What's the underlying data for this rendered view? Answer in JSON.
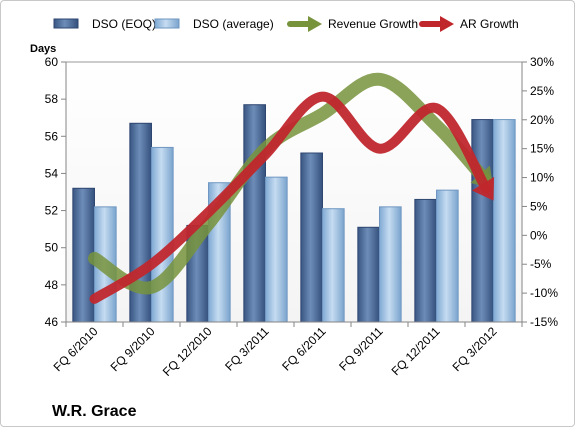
{
  "company_label": "W.R. Grace",
  "chart_data": {
    "type": "bar",
    "categories": [
      "FQ 6/2010",
      "FQ 9/2010",
      "FQ 12/2010",
      "FQ 3/2011",
      "FQ 6/2011",
      "FQ 9/2011",
      "FQ 12/2011",
      "FQ 3/2012"
    ],
    "ylabel": "Days",
    "ylim": [
      46,
      60
    ],
    "yticks": [
      "46",
      "48",
      "50",
      "52",
      "54",
      "56",
      "58",
      "60"
    ],
    "y2lim": [
      -15,
      30
    ],
    "y2ticks": [
      "-15%",
      "-10%",
      "-5%",
      "0%",
      "5%",
      "10%",
      "15%",
      "20%",
      "25%",
      "30%"
    ],
    "grid": false,
    "legend_position": "top",
    "series": [
      {
        "name": "DSO (EOQ)",
        "kind": "bar",
        "axis": "left",
        "color": "#4f6f9c",
        "values": [
          53.2,
          56.7,
          51.2,
          57.7,
          55.1,
          51.1,
          52.6,
          56.9
        ]
      },
      {
        "name": "DSO (average)",
        "kind": "bar",
        "axis": "left",
        "color": "#9dc3e6",
        "values": [
          52.2,
          55.4,
          53.5,
          53.8,
          52.1,
          52.2,
          53.1,
          56.9
        ]
      },
      {
        "name": "Revenue Growth",
        "kind": "arrow-line",
        "axis": "right",
        "color": "#77933c",
        "values": [
          -4,
          -9,
          2,
          15,
          21,
          27,
          19,
          8
        ]
      },
      {
        "name": "AR Growth",
        "kind": "arrow-line",
        "axis": "right",
        "color": "#c0272d",
        "values": [
          -11,
          -5,
          4,
          14,
          24,
          15,
          22,
          6
        ]
      }
    ]
  }
}
